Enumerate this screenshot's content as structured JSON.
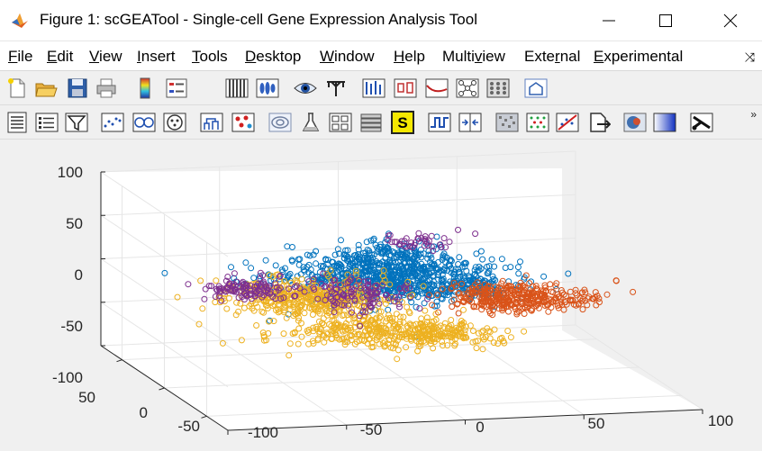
{
  "window": {
    "title": "Figure 1: scGEATool - Single-cell Gene Expression Analysis Tool",
    "icon": "matlab-icon",
    "controls": [
      "minimize-icon",
      "maximize-icon",
      "close-icon"
    ]
  },
  "menu": {
    "items": [
      {
        "label": "File",
        "underline": "F",
        "rest": "ile"
      },
      {
        "label": "Edit",
        "underline": "E",
        "rest": "dit"
      },
      {
        "label": "View",
        "underline": "V",
        "rest": "iew"
      },
      {
        "label": "Insert",
        "underline": "I",
        "rest": "nsert"
      },
      {
        "label": "Tools",
        "underline": "T",
        "rest": "ools"
      },
      {
        "label": "Desktop",
        "underline": "D",
        "rest": "esktop"
      },
      {
        "label": "Window",
        "underline": "W",
        "rest": "indow"
      },
      {
        "label": "Help",
        "underline": "H",
        "rest": "elp"
      },
      {
        "label": "Multiview",
        "pre": "Multi",
        "underline": "v",
        "rest": "iew"
      },
      {
        "label": "External",
        "pre": "Exte",
        "underline": "r",
        "rest": "nal"
      },
      {
        "label": "Experimental",
        "underline": "E",
        "rest": "xperimental"
      }
    ],
    "overflow_icon": "dock-arrow-icon"
  },
  "toolbar1": {
    "icons": [
      "new-figure-icon",
      "open-file-icon",
      "save-icon",
      "print-icon",
      "colorbar-icon",
      "legend-icon",
      "stripes-icon",
      "violin-icon",
      "eye-icon",
      "tree-icon",
      "bar-markers-icon",
      "boxplot-icon",
      "curve-icon",
      "network-icon",
      "grid-network-icon",
      "house-icon"
    ]
  },
  "toolbar2": {
    "icons": [
      "text-list-icon",
      "list-icon",
      "filter-icon",
      "scatter-dots-icon",
      "cluster-circles-icon",
      "target-icon",
      "dendrogram-icon",
      "red-dots-icon",
      "ellipse-icon",
      "flask-icon",
      "blocks-icon",
      "stack-icon",
      "s-badge-icon",
      "wave-icon",
      "split-icon",
      "noise-icon",
      "dot-grid-icon",
      "diagonal-icon",
      "export-icon",
      "blob-icon",
      "gradient-icon",
      "scissors-icon"
    ],
    "overflow_icon": "chevron-right-icon"
  },
  "chart_data": {
    "type": "scatter",
    "projection": "3d",
    "title": "",
    "z_ticks": [
      "100",
      "50",
      "0",
      "-50",
      "-100"
    ],
    "y_ticks": [
      "50",
      "0",
      "-50"
    ],
    "x_ticks": [
      "-100",
      "-50",
      "0",
      "50",
      "100"
    ],
    "xlim": [
      -100,
      100
    ],
    "ylim": [
      -75,
      75
    ],
    "zlim": [
      -100,
      100
    ],
    "grid": true,
    "series": [
      {
        "color": "#0072BD"
      },
      {
        "color": "#D95319"
      },
      {
        "color": "#EDB120"
      },
      {
        "color": "#7E2F8E"
      }
    ]
  }
}
